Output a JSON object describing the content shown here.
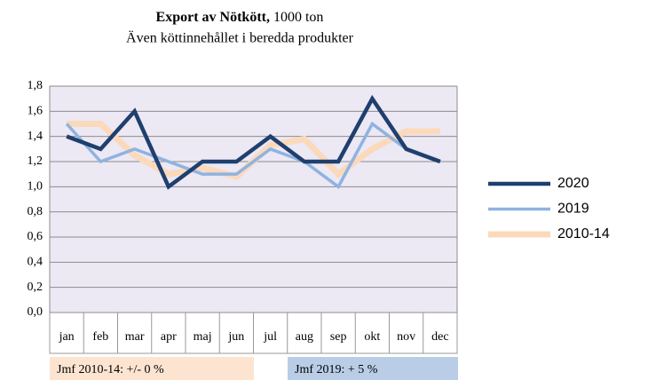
{
  "chart_data": {
    "type": "line",
    "title": "Export av Nötkött,",
    "title_unit": "1000 ton",
    "subtitle": "Även köttinnehållet i beredda produkter",
    "categories": [
      "jan",
      "feb",
      "mar",
      "apr",
      "maj",
      "jun",
      "jul",
      "aug",
      "sep",
      "okt",
      "nov",
      "dec"
    ],
    "series": [
      {
        "name": "2020",
        "color": "#1f3f6e",
        "values": [
          1.4,
          1.3,
          1.6,
          1.0,
          1.2,
          1.2,
          1.4,
          1.2,
          1.2,
          1.7,
          1.3,
          1.2
        ]
      },
      {
        "name": "2019",
        "color": "#8fb3e0",
        "values": [
          1.5,
          1.2,
          1.3,
          1.2,
          1.1,
          1.1,
          1.3,
          1.2,
          1.0,
          1.5,
          1.3,
          null
        ]
      },
      {
        "name": "2010-14",
        "color": "#fbd9bb",
        "values": [
          1.5,
          1.5,
          1.25,
          1.1,
          1.15,
          1.08,
          1.33,
          1.38,
          1.1,
          1.3,
          1.44,
          1.44
        ]
      }
    ],
    "ylim": [
      0,
      1.8
    ],
    "yticks": [
      {
        "value": 0,
        "label": "0,0"
      },
      {
        "value": 0.2,
        "label": "0,2"
      },
      {
        "value": 0.4,
        "label": "0,4"
      },
      {
        "value": 0.6,
        "label": "0,6"
      },
      {
        "value": 0.8,
        "label": "0,8"
      },
      {
        "value": 1.0,
        "label": "1,0"
      },
      {
        "value": 1.2,
        "label": "1,2"
      },
      {
        "value": 1.4,
        "label": "1,4"
      },
      {
        "value": 1.6,
        "label": "1,6"
      },
      {
        "value": 1.8,
        "label": "1,8"
      }
    ],
    "grid": true,
    "legend": "right",
    "annotations": [
      "Jmf 2010-14: +/- 0 %",
      "Jmf 2019: + 5 %"
    ]
  }
}
